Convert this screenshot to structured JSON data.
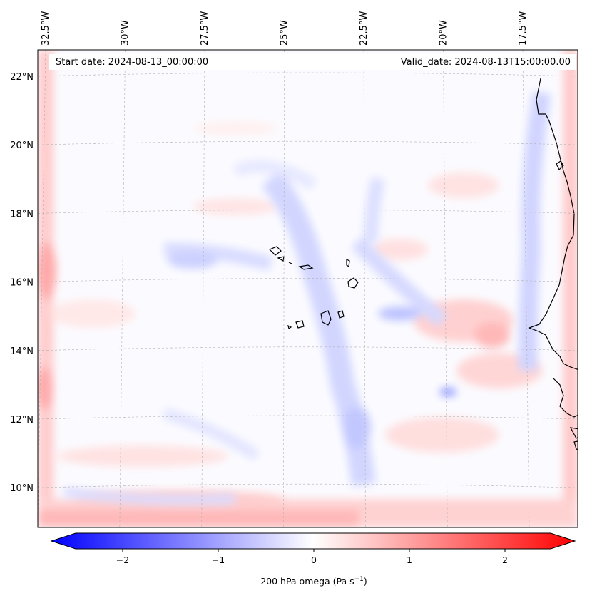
{
  "header": {
    "start_date": "Start date: 2024-08-13_00:00:00",
    "valid_date": "Valid_date: 2024-08-13T15:00:00.00"
  },
  "map": {
    "lon_ticks": [
      {
        "value": -32.5,
        "label": "32.5°W"
      },
      {
        "value": -30,
        "label": "30°W"
      },
      {
        "value": -27.5,
        "label": "27.5°W"
      },
      {
        "value": -25,
        "label": "25°W"
      },
      {
        "value": -22.5,
        "label": "22.5°W"
      },
      {
        "value": -20,
        "label": "20°W"
      },
      {
        "value": -17.5,
        "label": "17.5°W"
      }
    ],
    "lat_ticks": [
      {
        "value": 22,
        "label": "22°N"
      },
      {
        "value": 20,
        "label": "20°N"
      },
      {
        "value": 18,
        "label": "18°N"
      },
      {
        "value": 16,
        "label": "16°N"
      },
      {
        "value": 14,
        "label": "14°N"
      },
      {
        "value": 12,
        "label": "12°N"
      },
      {
        "value": 10,
        "label": "10°N"
      }
    ],
    "field": "200 hPa omega",
    "colormap": "bwr",
    "colors": {
      "negative": "#0000ff",
      "zero": "#ffffff",
      "positive": "#ff0000",
      "coastline": "#000000"
    }
  },
  "colorbar": {
    "label_main": "200 hPa omega (Pa s",
    "label_exp": "−1",
    "label_end": ")",
    "range": [
      -2.75,
      2.75
    ],
    "ticks": [
      {
        "value": -2,
        "label": "−2"
      },
      {
        "value": -1,
        "label": "−1"
      },
      {
        "value": 0,
        "label": "0"
      },
      {
        "value": 1,
        "label": "1"
      },
      {
        "value": 2,
        "label": "2"
      }
    ]
  }
}
